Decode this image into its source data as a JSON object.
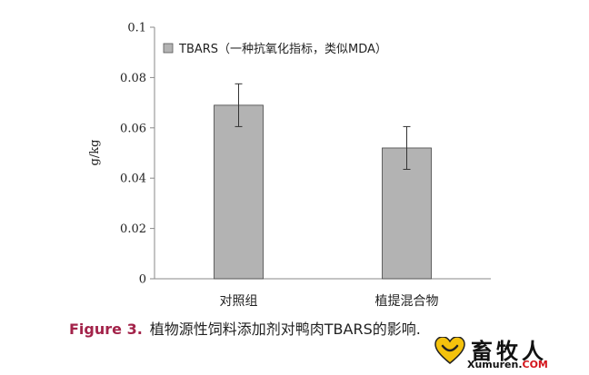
{
  "chart_data": {
    "type": "bar",
    "categories": [
      "对照组",
      "植提混合物"
    ],
    "series": [
      {
        "name": "TBARS（一种抗氧化指标，类似MDA）",
        "values": [
          0.069,
          0.052
        ],
        "errors": [
          0.0085,
          0.0085
        ],
        "color": "#b3b3b3"
      }
    ],
    "ylabel": "g/kg",
    "ylim": [
      0,
      0.1
    ],
    "yticks": [
      "0",
      "0.02",
      "0.04",
      "0.06",
      "0.08",
      "0.1"
    ],
    "legend_position": "top-left",
    "grid": false
  },
  "caption": {
    "figure_label": "Figure 3.",
    "text": "植物源性饲料添加剂对鸭肉TBARS的影响."
  },
  "watermark": {
    "brand": "畜牧人",
    "site_main": "Xumuren.",
    "site_tld": "COM"
  }
}
